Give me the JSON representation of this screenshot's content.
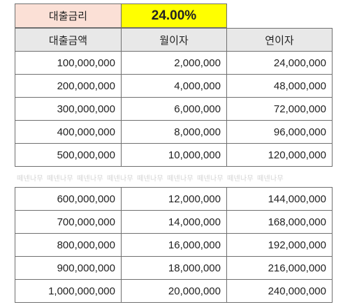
{
  "rate": {
    "label": "대출금리",
    "value": "24.00%"
  },
  "table": {
    "headers": [
      "대출금액",
      "월이자",
      "연이자"
    ],
    "rows_top": [
      [
        "100,000,000",
        "2,000,000",
        "24,000,000"
      ],
      [
        "200,000,000",
        "4,000,000",
        "48,000,000"
      ],
      [
        "300,000,000",
        "6,000,000",
        "72,000,000"
      ],
      [
        "400,000,000",
        "8,000,000",
        "96,000,000"
      ],
      [
        "500,000,000",
        "10,000,000",
        "120,000,000"
      ]
    ],
    "rows_bottom": [
      [
        "600,000,000",
        "12,000,000",
        "144,000,000"
      ],
      [
        "700,000,000",
        "14,000,000",
        "168,000,000"
      ],
      [
        "800,000,000",
        "16,000,000",
        "192,000,000"
      ],
      [
        "900,000,000",
        "18,000,000",
        "216,000,000"
      ],
      [
        "1,000,000,000",
        "20,000,000",
        "240,000,000"
      ]
    ]
  },
  "watermark": {
    "text": "떼넨나무",
    "repeat": 9
  },
  "colors": {
    "rate_label_bg": "#fbe0d6",
    "rate_value_bg": "#ffff00",
    "header_bg": "#e8e8e8",
    "border": "#6f6f6f"
  }
}
